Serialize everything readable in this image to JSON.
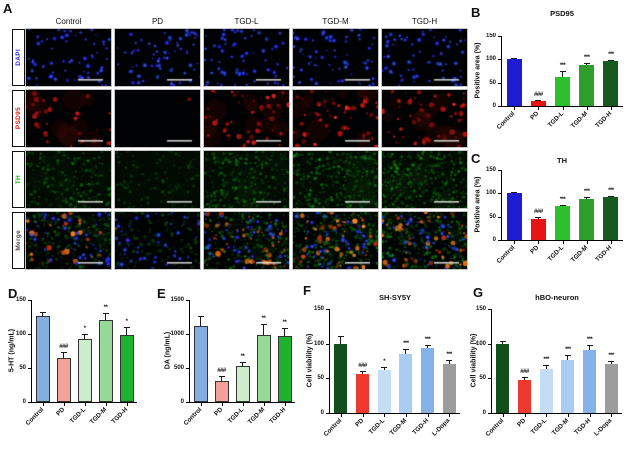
{
  "panels": {
    "a": "A",
    "b": "B",
    "c": "C",
    "d": "D",
    "e": "E",
    "f": "F",
    "g": "G"
  },
  "panelA": {
    "columns": [
      "Control",
      "PD",
      "TGD-L",
      "TGD-M",
      "TGD-H"
    ],
    "rows": [
      {
        "label": "DAPI",
        "color": "#2a2af0",
        "type": "dapi"
      },
      {
        "label": "PSD95",
        "color": "#e81414",
        "type": "psd95"
      },
      {
        "label": "TH",
        "color": "#23b523",
        "type": "th"
      },
      {
        "label": "Merge",
        "color": "#4a4a4a",
        "type": "merge"
      }
    ]
  },
  "chart_data": [
    {
      "key": "psd95",
      "panel": "B",
      "type": "bar",
      "title": "PSD95",
      "ylabel": "Positive area (%)",
      "ylim": [
        0,
        150
      ],
      "yticks": [
        0,
        50,
        100,
        150
      ],
      "categories": [
        "Control",
        "PD",
        "TGD-L",
        "TGD-M",
        "TGD-H"
      ],
      "values": [
        100,
        10,
        62,
        87,
        96
      ],
      "errors": [
        2,
        2,
        12,
        6,
        3
      ],
      "annotations": [
        "",
        "###",
        "***",
        "***",
        "***"
      ],
      "bar_colors": [
        "#1c1cd2",
        "#e81414",
        "#2cc12c",
        "#2f9e2f",
        "#17591f"
      ],
      "bar_border": ""
    },
    {
      "key": "th",
      "panel": "C",
      "type": "bar",
      "title": "TH",
      "ylabel": "Positive area (%)",
      "ylim": [
        0,
        150
      ],
      "yticks": [
        0,
        50,
        100,
        150
      ],
      "categories": [
        "Control",
        "PD",
        "TGD-L",
        "TGD-M",
        "TGD-H"
      ],
      "values": [
        100,
        45,
        72,
        88,
        92
      ],
      "errors": [
        3,
        4,
        4,
        5,
        3
      ],
      "annotations": [
        "",
        "###",
        "***",
        "***",
        "***"
      ],
      "bar_colors": [
        "#1c1cd2",
        "#e81414",
        "#2cc12c",
        "#2f9e2f",
        "#17591f"
      ],
      "bar_border": ""
    },
    {
      "key": "5ht",
      "panel": "D",
      "type": "bar",
      "title": "",
      "ylabel": "5-HT (ng/mL)",
      "ylim": [
        0,
        150
      ],
      "yticks": [
        0,
        50,
        100,
        150
      ],
      "categories": [
        "Control",
        "PD",
        "TGD-L",
        "TGD-M",
        "TGD-H"
      ],
      "values": [
        127,
        64,
        93,
        121,
        98
      ],
      "errors": [
        5,
        10,
        7,
        10,
        12
      ],
      "annotations": [
        "",
        "###",
        "*",
        "**",
        "*"
      ],
      "bar_colors": [
        "#82aee2",
        "#f5a099",
        "#cdeccb",
        "#96d996",
        "#1eb32e"
      ],
      "bar_border": "#333333"
    },
    {
      "key": "da",
      "panel": "E",
      "type": "bar",
      "title": "",
      "ylabel": "DA (ng/mL)",
      "ylim": [
        0,
        1500
      ],
      "yticks": [
        0,
        500,
        1000,
        1500
      ],
      "categories": [
        "Control",
        "PD",
        "TGD-L",
        "TGD-M",
        "TGD-H"
      ],
      "values": [
        1120,
        305,
        530,
        990,
        965
      ],
      "errors": [
        150,
        80,
        60,
        160,
        120
      ],
      "annotations": [
        "",
        "###",
        "**",
        "**",
        "**"
      ],
      "bar_colors": [
        "#82aee2",
        "#f5a099",
        "#cdeccb",
        "#96d996",
        "#1eb32e"
      ],
      "bar_border": "#333333"
    },
    {
      "key": "shsy5y",
      "panel": "F",
      "type": "bar",
      "title": "SH-SY5Y",
      "ylabel": "Cell viability (%)",
      "ylim": [
        0,
        150
      ],
      "yticks": [
        0,
        50,
        100,
        150
      ],
      "categories": [
        "Control",
        "PD",
        "TGD-L",
        "TGD-M",
        "TGD-H",
        "L-Dopa"
      ],
      "values": [
        100,
        56,
        62,
        85,
        94,
        70
      ],
      "errors": [
        11,
        4,
        5,
        8,
        4,
        6
      ],
      "annotations": [
        "",
        "###",
        "*",
        "***",
        "***",
        "***"
      ],
      "bar_colors": [
        "#124f1d",
        "#ee3a2e",
        "#c4ddf4",
        "#a9cdf0",
        "#84b2e8",
        "#9c9c9c"
      ],
      "bar_border": ""
    },
    {
      "key": "hbo",
      "panel": "G",
      "type": "bar",
      "title": "hBO-neuron",
      "ylabel": "Cell viability (%)",
      "ylim": [
        0,
        150
      ],
      "yticks": [
        0,
        50,
        100,
        150
      ],
      "categories": [
        "Control",
        "PD",
        "TGD-L",
        "TGD-M",
        "TGD-H",
        "L-Dopa"
      ],
      "values": [
        100,
        47,
        64,
        77,
        91,
        70
      ],
      "errors": [
        4,
        5,
        5,
        6,
        7,
        5
      ],
      "annotations": [
        "",
        "###",
        "***",
        "***",
        "***",
        "***"
      ],
      "bar_colors": [
        "#124f1d",
        "#ee3a2e",
        "#c4ddf4",
        "#a9cdf0",
        "#84b2e8",
        "#9c9c9c"
      ],
      "bar_border": ""
    }
  ]
}
